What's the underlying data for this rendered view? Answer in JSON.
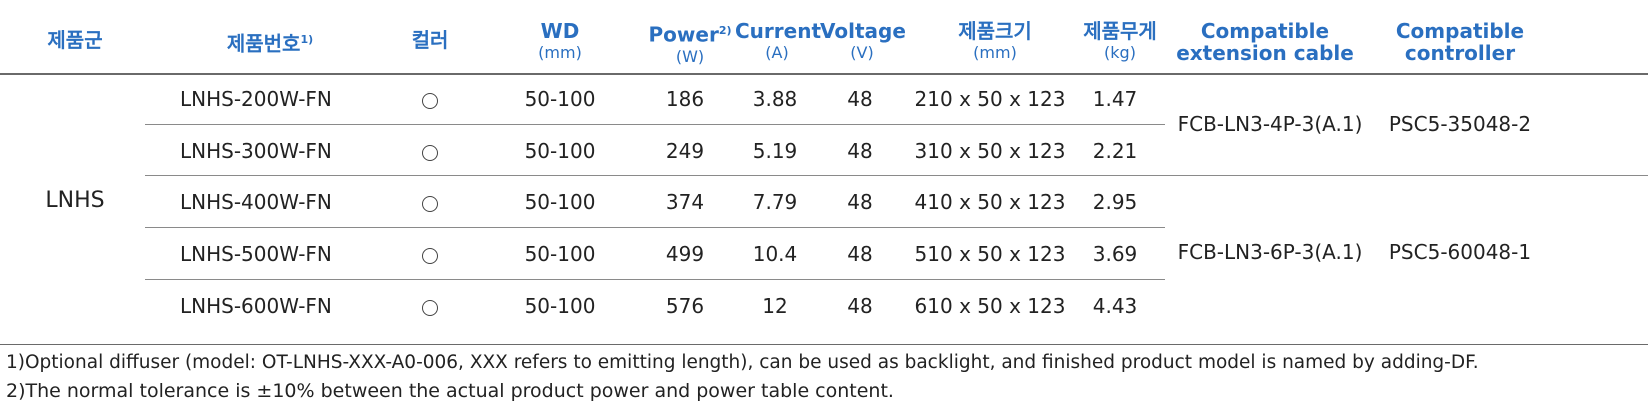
{
  "headers": {
    "group": "제품군",
    "model": "제품번호",
    "model_sup": "1)",
    "color": "컬러",
    "wd": "WD",
    "wd_unit": "(mm)",
    "power": "Power",
    "power_sup": "2)",
    "power_unit": "(W)",
    "current": "Current",
    "current_unit": "(A)",
    "voltage": "Voltage",
    "voltage_unit": "(V)",
    "size": "제품크기",
    "size_unit": "(mm)",
    "weight": "제품무게",
    "weight_unit": "(kg)",
    "cable": "Compatible",
    "cable2": "extension cable",
    "controller": "Compatible",
    "controller2": "controller"
  },
  "group_name": "LNHS",
  "rows": [
    {
      "model": "LNHS-200W-FN",
      "color": "circle",
      "wd": "50-100",
      "power": "186",
      "current": "3.88",
      "voltage": "48",
      "size": "210 x 50 x 123",
      "weight": "1.47"
    },
    {
      "model": "LNHS-300W-FN",
      "color": "circle",
      "wd": "50-100",
      "power": "249",
      "current": "5.19",
      "voltage": "48",
      "size": "310 x 50 x 123",
      "weight": "2.21"
    },
    {
      "model": "LNHS-400W-FN",
      "color": "circle",
      "wd": "50-100",
      "power": "374",
      "current": "7.79",
      "voltage": "48",
      "size": "410 x 50 x 123",
      "weight": "2.95"
    },
    {
      "model": "LNHS-500W-FN",
      "color": "circle",
      "wd": "50-100",
      "power": "499",
      "current": "10.4",
      "voltage": "48",
      "size": "510 x 50 x 123",
      "weight": "3.69"
    },
    {
      "model": "LNHS-600W-FN",
      "color": "circle",
      "wd": "50-100",
      "power": "576",
      "current": "12",
      "voltage": "48",
      "size": "610 x 50 x 123",
      "weight": "4.43"
    }
  ],
  "merged": [
    {
      "cable": "FCB-LN3-4P-3(A.1)",
      "controller": "PSC5-35048-2"
    },
    {
      "cable": "FCB-LN3-6P-3(A.1)",
      "controller": "PSC5-60048-1"
    }
  ],
  "notes": {
    "note1": "1)Optional diffuser (model: OT-LNHS-XXX-A0-006, XXX refers to emitting length), can be used as backlight, and finished product model is named by adding-DF.",
    "note2": "2)The normal tolerance is ±10% between the actual product power and power table content."
  },
  "colors": {
    "header": "#2a6fc0",
    "rule": "#6a6a6a"
  }
}
